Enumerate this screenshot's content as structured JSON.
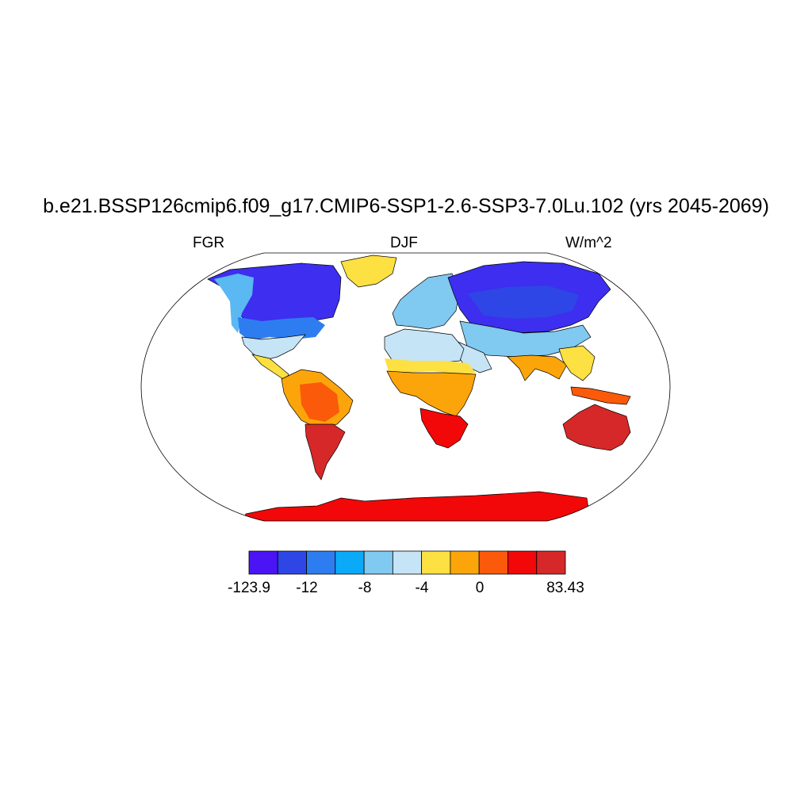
{
  "title": "b.e21.BSSP126cmip6.f09_g17.CMIP6-SSP1-2.6-SSP3-7.0Lu.102 (yrs 2045-2069)",
  "subtitles": {
    "left": "FGR",
    "center": "DJF",
    "right": "W/m^2"
  },
  "colorbar": {
    "colors": [
      "#4a14f5",
      "#2e46e6",
      "#2e7df0",
      "#0aaaf9",
      "#80c9f0",
      "#c5e4f6",
      "#fde041",
      "#fca50a",
      "#fb5a0a",
      "#f20808",
      "#d62828"
    ],
    "labels": [
      "-123.9",
      "-12",
      "-8",
      "-4",
      "0",
      "83.43"
    ]
  },
  "colors": {
    "land_outline": "#000000",
    "ocean": "#ffffff",
    "border": "#000000"
  }
}
